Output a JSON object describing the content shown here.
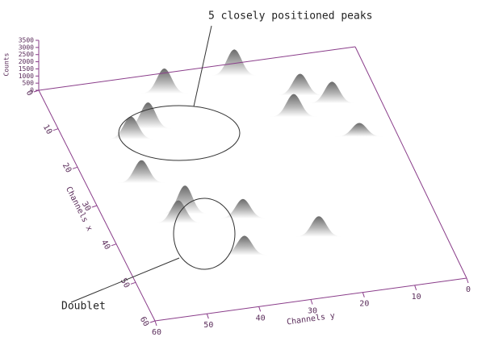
{
  "chart_data": {
    "type": "peaks3d",
    "x_label": "Channels x",
    "y_label": "Channels y",
    "z_label": "Counts",
    "xlim": [
      0,
      60
    ],
    "xticks": [
      0,
      10,
      20,
      30,
      40,
      50,
      60
    ],
    "ylim": [
      0,
      60
    ],
    "yticks": [
      0,
      10,
      20,
      30,
      40,
      50,
      60
    ],
    "zlim": [
      0,
      3500
    ],
    "zticks": [
      0,
      500,
      1000,
      1500,
      2000,
      2500,
      3000,
      3500
    ],
    "x": [
      5,
      3,
      15,
      13,
      10,
      15,
      13,
      22,
      26,
      35,
      37,
      38,
      45,
      47
    ],
    "y": [
      38,
      24,
      48,
      44,
      14,
      17,
      9,
      7,
      50,
      45,
      47,
      35,
      23,
      38
    ],
    "values": [
      2200,
      2300,
      2000,
      2300,
      1900,
      2000,
      1900,
      1200,
      2000,
      2500,
      2000,
      1700,
      1800,
      1700
    ],
    "color": "#707070",
    "axis_color": "#8a3d8a",
    "annotations": [
      "5 closely positioned peaks",
      "Doublet"
    ]
  }
}
